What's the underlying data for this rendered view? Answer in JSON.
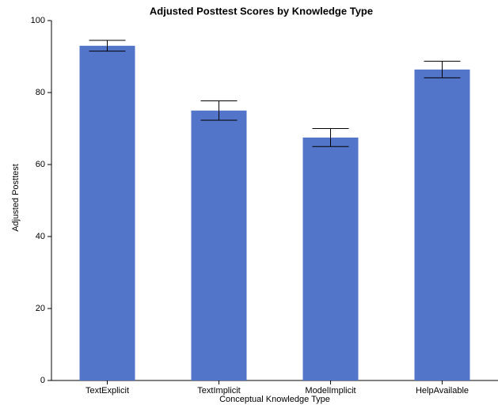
{
  "chart_data": {
    "type": "bar",
    "title": "Adjusted Posttest Scores by Knowledge Type",
    "xlabel": "Conceptual Knowledge Type",
    "ylabel": "Adjusted Posttest",
    "categories": [
      "TextExplicit",
      "TextImplicit",
      "ModelImplicit",
      "HelpAvailable"
    ],
    "values": [
      93,
      75,
      67.5,
      86.4
    ],
    "errors": [
      1.5,
      2.7,
      2.5,
      2.3
    ],
    "color": "#5275c9",
    "ylim": [
      0,
      100
    ],
    "yticks": [
      0,
      20,
      40,
      60,
      80,
      100
    ],
    "grid": false
  }
}
